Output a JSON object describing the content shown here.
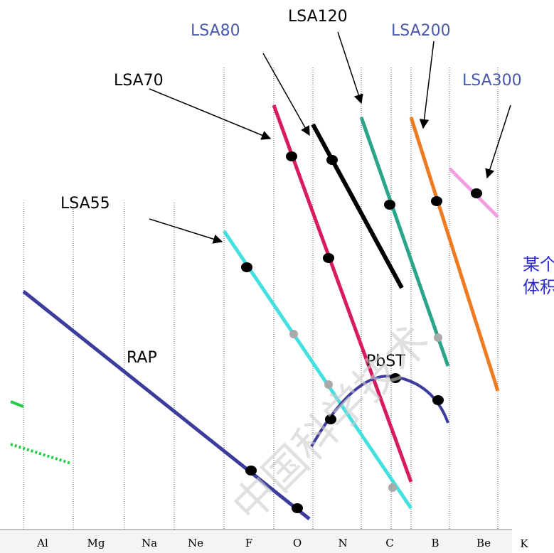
{
  "labels": {
    "lsa80": "LSA80",
    "lsa120": "LSA120",
    "lsa200": "LSA200",
    "lsa300": "LSA300",
    "lsa70": "LSA70",
    "lsa55": "LSA55",
    "rap": "RAP",
    "pbst": "PbST"
  },
  "elements": [
    "Al",
    "Mg",
    "Na",
    "Ne",
    "F",
    "O",
    "N",
    "C",
    "B",
    "Be",
    "K"
  ],
  "side_note": [
    "某个",
    "体积"
  ],
  "watermark": "中国科学技术"
}
